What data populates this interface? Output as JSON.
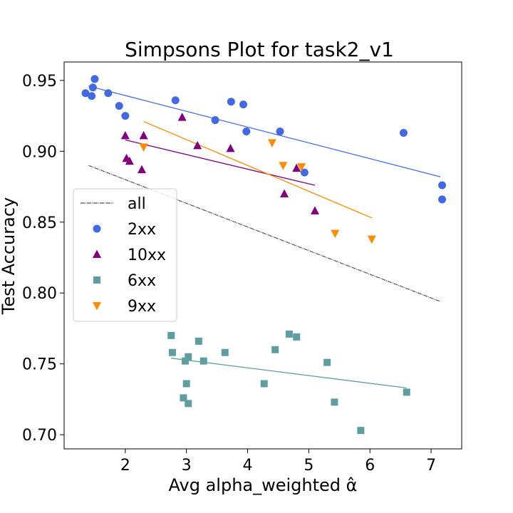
{
  "chart_data": {
    "type": "scatter",
    "title": "Simpsons Plot for task2_v1",
    "xlabel": "Avg alpha_weighted α̂",
    "ylabel": "Test Accuracy",
    "xlim": [
      1.0,
      7.5
    ],
    "ylim": [
      0.69,
      0.963
    ],
    "xticks": [
      2,
      3,
      4,
      5,
      6,
      7
    ],
    "yticks": [
      0.7,
      0.75,
      0.8,
      0.85,
      0.9,
      0.95
    ],
    "xtick_labels": [
      "2",
      "3",
      "4",
      "5",
      "6",
      "7"
    ],
    "ytick_labels": [
      "0.70",
      "0.75",
      "0.80",
      "0.85",
      "0.90",
      "0.95"
    ],
    "grid": false,
    "legend_position": "center-left",
    "overall_fit": {
      "name": "all",
      "color": "#555555",
      "x": [
        1.4,
        7.15
      ],
      "y": [
        0.89,
        0.794
      ]
    },
    "series": [
      {
        "name": "2xx",
        "marker": "circle",
        "color": "#4169e1",
        "x": [
          1.35,
          1.45,
          1.47,
          1.5,
          1.72,
          1.9,
          2.0,
          2.82,
          3.47,
          3.73,
          3.93,
          3.98,
          4.53,
          4.93,
          6.55,
          7.18,
          7.18
        ],
        "y": [
          0.941,
          0.939,
          0.945,
          0.951,
          0.941,
          0.932,
          0.925,
          0.936,
          0.922,
          0.935,
          0.933,
          0.914,
          0.914,
          0.885,
          0.913,
          0.876,
          0.866
        ],
        "fit": {
          "x": [
            1.4,
            7.15
          ],
          "y": [
            0.946,
            0.882
          ]
        }
      },
      {
        "name": "10xx",
        "marker": "triangle-up",
        "color": "#800080",
        "x": [
          2.0,
          2.02,
          2.07,
          2.27,
          2.3,
          2.93,
          3.18,
          3.72,
          4.6,
          4.8,
          5.1
        ],
        "y": [
          0.911,
          0.895,
          0.893,
          0.887,
          0.911,
          0.924,
          0.904,
          0.902,
          0.87,
          0.888,
          0.858
        ],
        "fit": {
          "x": [
            2.0,
            5.1
          ],
          "y": [
            0.908,
            0.876
          ]
        }
      },
      {
        "name": "6xx",
        "marker": "square",
        "color": "#5f9ea0",
        "x": [
          2.75,
          2.77,
          2.95,
          2.98,
          3.0,
          3.03,
          3.03,
          3.2,
          3.28,
          3.63,
          4.27,
          4.45,
          4.68,
          4.8,
          5.3,
          5.42,
          5.85,
          6.6
        ],
        "y": [
          0.77,
          0.758,
          0.726,
          0.752,
          0.736,
          0.722,
          0.755,
          0.766,
          0.752,
          0.758,
          0.736,
          0.76,
          0.771,
          0.769,
          0.751,
          0.723,
          0.703,
          0.73
        ],
        "fit": {
          "x": [
            2.75,
            6.6
          ],
          "y": [
            0.754,
            0.733
          ]
        }
      },
      {
        "name": "9xx",
        "marker": "triangle-down",
        "color": "#ff8c00",
        "x": [
          2.3,
          4.4,
          4.58,
          4.88,
          5.43,
          6.03
        ],
        "y": [
          0.903,
          0.906,
          0.89,
          0.889,
          0.842,
          0.838
        ],
        "fit": {
          "x": [
            2.3,
            6.03
          ],
          "y": [
            0.921,
            0.853
          ]
        }
      }
    ]
  }
}
